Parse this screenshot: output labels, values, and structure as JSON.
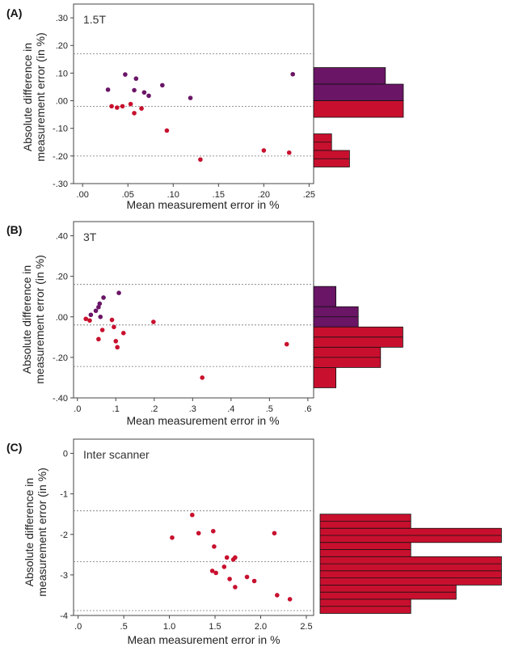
{
  "colors": {
    "purple": "#6a1566",
    "red": "#c8102e",
    "axis": "#444444",
    "ref_line": "#777777"
  },
  "chart_data": [
    {
      "type": "scatter",
      "panel": "(A)",
      "label": "1.5T",
      "xlabel": "Mean measurement error in %",
      "ylabel": [
        "Absolute difference in",
        "measurement error (in %)"
      ],
      "xlim": [
        -0.01,
        0.255
      ],
      "ylim": [
        -0.3,
        0.35
      ],
      "xticks": [
        0.0,
        0.05,
        0.1,
        0.15,
        0.2,
        0.25
      ],
      "xtick_labels": [
        ".00",
        ".05",
        ".10",
        ".15",
        ".20",
        ".25"
      ],
      "yticks": [
        -0.3,
        -0.2,
        -0.1,
        0.0,
        0.1,
        0.2,
        0.3
      ],
      "ytick_labels": [
        "-.30",
        "-.20",
        "-.10",
        ".00",
        ".10",
        ".20",
        ".30"
      ],
      "reference_lines": [
        0.17,
        -0.02,
        -0.2
      ],
      "series": [
        {
          "color": "purple",
          "points": [
            [
              0.028,
              0.04
            ],
            [
              0.047,
              0.095
            ],
            [
              0.057,
              0.038
            ],
            [
              0.059,
              0.08
            ],
            [
              0.068,
              0.03
            ],
            [
              0.073,
              0.018
            ],
            [
              0.088,
              0.056
            ],
            [
              0.119,
              0.01
            ],
            [
              0.232,
              0.096
            ]
          ]
        },
        {
          "color": "red",
          "points": [
            [
              0.032,
              -0.02
            ],
            [
              0.038,
              -0.025
            ],
            [
              0.044,
              -0.02
            ],
            [
              0.053,
              -0.012
            ],
            [
              0.057,
              -0.045
            ],
            [
              0.065,
              -0.028
            ],
            [
              0.093,
              -0.108
            ],
            [
              0.13,
              -0.213
            ],
            [
              0.2,
              -0.18
            ],
            [
              0.228,
              -0.188
            ]
          ]
        }
      ],
      "histogram": {
        "bins": [
          [
            0.06,
            0.12
          ],
          [
            0.0,
            0.06
          ],
          [
            -0.06,
            0.0
          ],
          [
            -0.18,
            -0.12
          ],
          [
            -0.24,
            -0.18
          ]
        ],
        "counts": [
          8,
          10,
          10,
          2,
          4
        ],
        "colors": [
          "purple",
          "purple",
          "red",
          "red",
          "red"
        ],
        "sub_rows": [
          1,
          1,
          1,
          2,
          2
        ]
      }
    },
    {
      "type": "scatter",
      "panel": "(B)",
      "label": "3T",
      "xlabel": "Mean measurement error in %",
      "ylabel": [
        "Absolute difference in",
        "measurement error (in %)"
      ],
      "xlim": [
        -0.01,
        0.615
      ],
      "ylim": [
        -0.4,
        0.47
      ],
      "xticks": [
        0.0,
        0.1,
        0.2,
        0.3,
        0.4,
        0.5,
        0.6
      ],
      "xtick_labels": [
        ".0",
        ".1",
        ".2",
        ".3",
        ".4",
        ".5",
        ".6"
      ],
      "yticks": [
        -0.4,
        -0.2,
        0.0,
        0.2,
        0.4
      ],
      "ytick_labels": [
        "-.40",
        "-.20",
        ".00",
        ".20",
        ".40"
      ],
      "reference_lines": [
        0.16,
        -0.04,
        -0.245
      ],
      "series": [
        {
          "color": "purple",
          "points": [
            [
              0.035,
              0.01
            ],
            [
              0.048,
              0.03
            ],
            [
              0.055,
              0.048
            ],
            [
              0.058,
              0.065
            ],
            [
              0.06,
              0.0
            ],
            [
              0.068,
              0.095
            ],
            [
              0.108,
              0.118
            ]
          ]
        },
        {
          "color": "red",
          "points": [
            [
              0.022,
              -0.01
            ],
            [
              0.032,
              -0.018
            ],
            [
              0.055,
              -0.11
            ],
            [
              0.065,
              -0.065
            ],
            [
              0.09,
              -0.015
            ],
            [
              0.095,
              -0.05
            ],
            [
              0.1,
              -0.12
            ],
            [
              0.104,
              -0.15
            ],
            [
              0.12,
              -0.08
            ],
            [
              0.198,
              -0.025
            ],
            [
              0.325,
              -0.3
            ],
            [
              0.545,
              -0.135
            ]
          ]
        }
      ],
      "histogram": {
        "bins": [
          [
            0.05,
            0.15
          ],
          [
            -0.05,
            0.05
          ],
          [
            -0.15,
            -0.05
          ],
          [
            -0.25,
            -0.15
          ],
          [
            -0.35,
            -0.25
          ]
        ],
        "counts": [
          4,
          8,
          16,
          12,
          4
        ],
        "colors": [
          "purple",
          "purple",
          "red",
          "red",
          "red"
        ],
        "sub_rows": [
          1,
          2,
          2,
          2,
          1
        ]
      }
    },
    {
      "type": "scatter",
      "panel": "(C)",
      "label": "Inter scanner",
      "xlabel": "Mean measurement error in %",
      "ylabel": [
        "Absolute difference in",
        "measurement error (in %)"
      ],
      "xlim": [
        -0.05,
        2.58
      ],
      "ylim": [
        -4.0,
        0.35
      ],
      "xticks": [
        0.0,
        0.5,
        1.0,
        1.5,
        2.0,
        2.5
      ],
      "xtick_labels": [
        ".0",
        ".5",
        "1.0",
        "1.5",
        "2.0",
        "2.5"
      ],
      "yticks": [
        -4,
        -3,
        -2,
        -1,
        0
      ],
      "ytick_labels": [
        "-4",
        "-3",
        "-2",
        "-1",
        "0"
      ],
      "reference_lines": [
        -1.42,
        -2.67,
        -3.88
      ],
      "series": [
        {
          "color": "red",
          "points": [
            [
              1.03,
              -2.08
            ],
            [
              1.25,
              -1.52
            ],
            [
              1.32,
              -1.97
            ],
            [
              1.47,
              -2.9
            ],
            [
              1.48,
              -1.92
            ],
            [
              1.49,
              -2.3
            ],
            [
              1.51,
              -2.95
            ],
            [
              1.6,
              -2.8
            ],
            [
              1.63,
              -2.57
            ],
            [
              1.66,
              -3.1
            ],
            [
              1.7,
              -2.62
            ],
            [
              1.72,
              -2.57
            ],
            [
              1.72,
              -3.3
            ],
            [
              1.85,
              -3.05
            ],
            [
              1.93,
              -3.15
            ],
            [
              2.15,
              -1.97
            ],
            [
              2.18,
              -3.5
            ],
            [
              2.32,
              -3.6
            ]
          ]
        }
      ],
      "histogram": {
        "bins": [
          [
            -1.85,
            -1.5
          ],
          [
            -2.2,
            -1.85
          ],
          [
            -2.55,
            -2.2
          ],
          [
            -2.9,
            -2.55
          ],
          [
            -3.25,
            -2.9
          ],
          [
            -3.6,
            -3.25
          ],
          [
            -3.95,
            -3.6
          ]
        ],
        "counts": [
          6,
          12,
          6,
          12,
          12,
          9,
          6
        ],
        "colors": [
          "red",
          "red",
          "red",
          "red",
          "red",
          "red",
          "red"
        ],
        "sub_rows": [
          2,
          2,
          2,
          2,
          2,
          2,
          2
        ]
      }
    }
  ]
}
